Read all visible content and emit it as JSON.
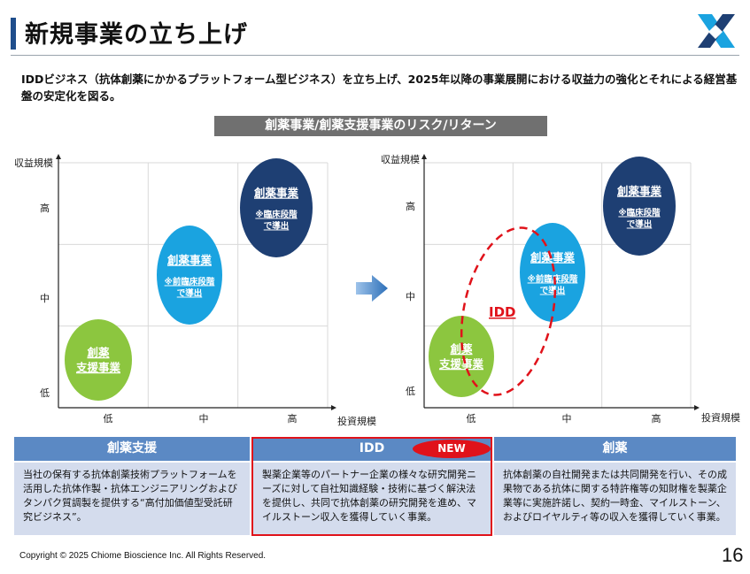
{
  "header": {
    "title": "新規事業の立ち上げ",
    "logo_icon": "chiome-x-logo-icon"
  },
  "summary": "IDDビジネス（抗体創薬にかかるプラットフォーム型ビジネス）を立ち上げ、2025年以降の事業展開における収益力の強化とそれによる経営基盤の安定化を図る。",
  "section_header": "創薬事業/創薬支援事業のリスク/リターン",
  "chart_data": [
    {
      "type": "scatter",
      "title": "",
      "xlabel": "投資規模",
      "ylabel": "収益規模",
      "x_ticks": [
        "低",
        "中",
        "高"
      ],
      "y_ticks": [
        "高",
        "中",
        "低"
      ],
      "grid": true,
      "points": [
        {
          "label": "創薬\n支援事業",
          "note": "",
          "x": "低",
          "y": "低",
          "color": "#8cc63f"
        },
        {
          "label": "創薬事業",
          "note": "※前臨床段階\nで導出",
          "x": "中",
          "y": "中",
          "color": "#1aa3e0"
        },
        {
          "label": "創薬事業",
          "note": "※臨床段階\nで導出",
          "x": "高",
          "y": "高",
          "color": "#1e3f73"
        }
      ]
    },
    {
      "type": "scatter",
      "title": "",
      "xlabel": "投資規模",
      "ylabel": "収益規模",
      "x_ticks": [
        "低",
        "中",
        "高"
      ],
      "y_ticks": [
        "高",
        "中",
        "低"
      ],
      "grid": true,
      "points": [
        {
          "label": "創薬\n支援事業",
          "note": "",
          "x": "低",
          "y": "低",
          "color": "#8cc63f"
        },
        {
          "label": "創薬事業",
          "note": "※前臨床段階\nで導出",
          "x": "中",
          "y": "中",
          "color": "#1aa3e0"
        },
        {
          "label": "創薬事業",
          "note": "※臨床段階\nで導出",
          "x": "高",
          "y": "高",
          "color": "#1e3f73"
        }
      ],
      "annotation": {
        "label": "IDD",
        "color": "#e0121a",
        "style": "dashed-ellipse"
      }
    }
  ],
  "columns": [
    {
      "heading": "創薬支援",
      "body": "当社の保有する抗体創薬技術プラットフォームを活用した抗体作製・抗体エンジニアリングおよびタンパク質調製を提供する“高付加価値型受託研究ビジネス”。"
    },
    {
      "heading": "IDD",
      "badge": "NEW",
      "body": "製薬企業等のパートナー企業の様々な研究開発ニーズに対して自社知識経験・技術に基づく解決法を提供し、共同で抗体創薬の研究開発を進め、マイルストーン収入を獲得していく事業。"
    },
    {
      "heading": "創薬",
      "body": "抗体創薬の自社開発または共同開発を行い、その成果物である抗体に関する特許権等の知財権を製薬企業等に実施許諾し、契約一時金、マイルストーン、およびロイヤルティ等の収入を獲得していく事業。"
    }
  ],
  "footer": {
    "copyright": "Copyright © 2025 Chiome Bioscience Inc. All Rights Reserved.",
    "page_number": "16"
  },
  "colors": {
    "accent_blue": "#1f4e8c",
    "column_head": "#5b89c4",
    "column_body": "#d4dced",
    "highlight_red": "#e0121a"
  }
}
